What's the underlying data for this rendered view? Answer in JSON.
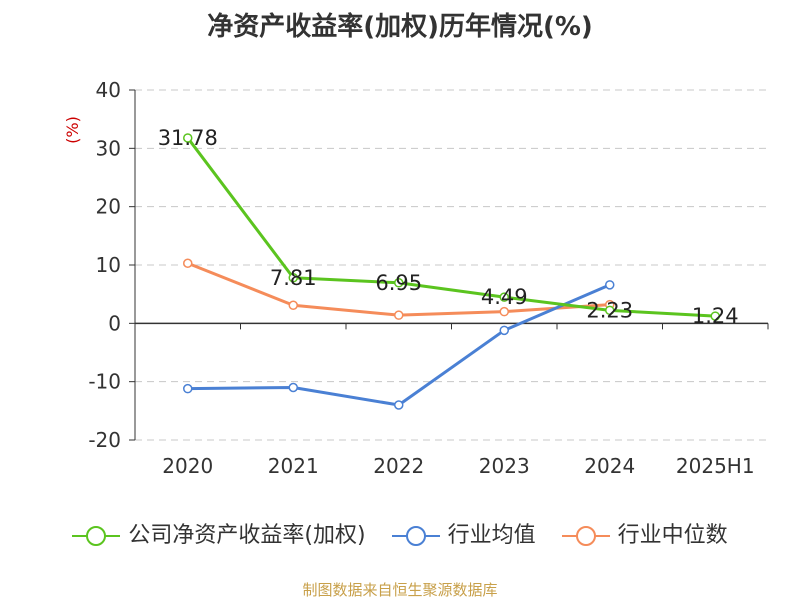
{
  "title": "净资产收益率(加权)历年情况(%)",
  "source": "制图数据来自恒生聚源数据库",
  "colors": {
    "company": "#5bc41f",
    "industry_avg": "#4a80d4",
    "industry_median": "#f58c5a",
    "ylabel": "#cc0000"
  },
  "chart_data": {
    "type": "line",
    "title": "净资产收益率(加权)历年情况(%)",
    "ylabel": "(%)",
    "categories": [
      "2020",
      "2021",
      "2022",
      "2023",
      "2024",
      "2025H1"
    ],
    "ylim": [
      -20,
      40
    ],
    "yticks": [
      "40",
      "30",
      "20",
      "10",
      "0",
      "-10",
      "-20"
    ],
    "ytick_values": [
      40,
      30,
      20,
      10,
      0,
      -10,
      -20
    ],
    "grid": true,
    "legend_position": "bottom",
    "series": [
      {
        "name": "公司净资产收益率(加权)",
        "key": "company",
        "values": [
          31.78,
          7.81,
          6.95,
          4.49,
          2.23,
          1.24
        ],
        "labels": [
          "31.78",
          "7.81",
          "6.95",
          "4.49",
          "2.23",
          "1.24"
        ]
      },
      {
        "name": "行业均值",
        "key": "industry_avg",
        "values": [
          -11.2,
          -11.0,
          -14.0,
          -1.2,
          6.6,
          null
        ]
      },
      {
        "name": "行业中位数",
        "key": "industry_median",
        "values": [
          10.3,
          3.1,
          1.4,
          2.0,
          3.2,
          null
        ]
      }
    ]
  }
}
